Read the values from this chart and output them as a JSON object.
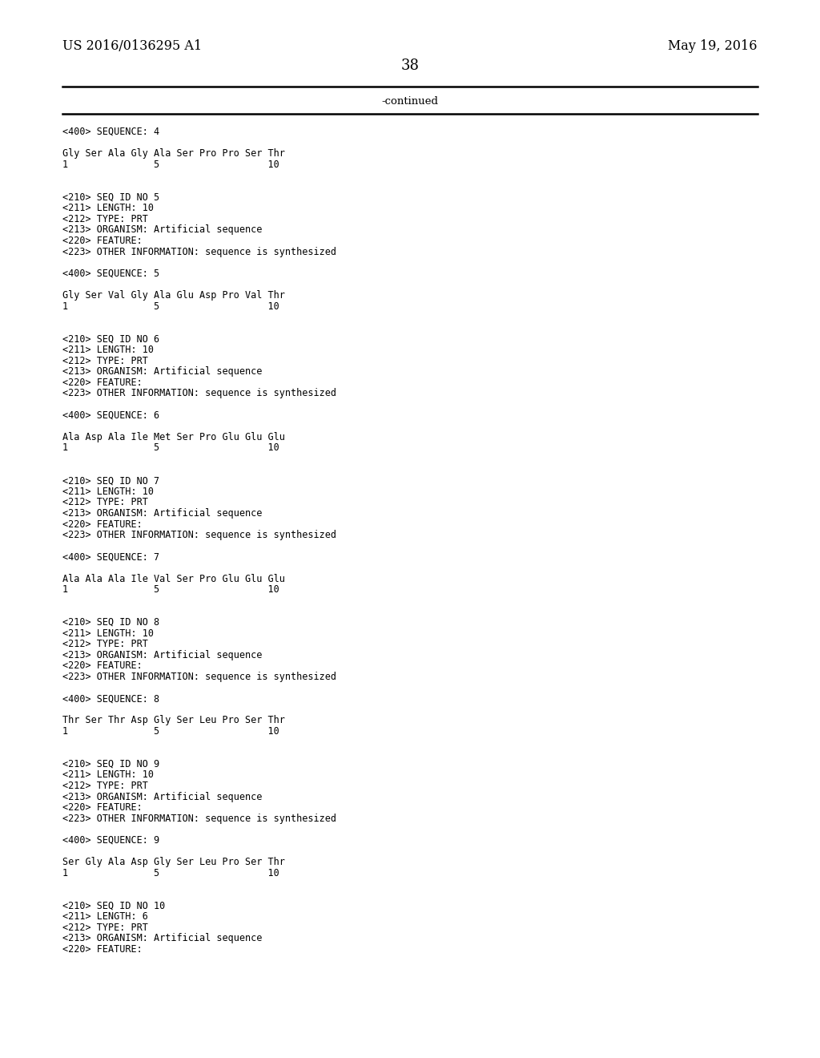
{
  "header_left": "US 2016/0136295 A1",
  "header_right": "May 19, 2016",
  "page_number": "38",
  "continued_label": "-continued",
  "background_color": "#ffffff",
  "text_color": "#000000",
  "header_fontsize": 11.5,
  "page_num_fontsize": 13.0,
  "mono_fontsize": 8.5,
  "continued_fontsize": 9.5,
  "lines": [
    "<400> SEQUENCE: 4",
    "",
    "Gly Ser Ala Gly Ala Ser Pro Pro Ser Thr",
    "1               5                   10",
    "",
    "",
    "<210> SEQ ID NO 5",
    "<211> LENGTH: 10",
    "<212> TYPE: PRT",
    "<213> ORGANISM: Artificial sequence",
    "<220> FEATURE:",
    "<223> OTHER INFORMATION: sequence is synthesized",
    "",
    "<400> SEQUENCE: 5",
    "",
    "Gly Ser Val Gly Ala Glu Asp Pro Val Thr",
    "1               5                   10",
    "",
    "",
    "<210> SEQ ID NO 6",
    "<211> LENGTH: 10",
    "<212> TYPE: PRT",
    "<213> ORGANISM: Artificial sequence",
    "<220> FEATURE:",
    "<223> OTHER INFORMATION: sequence is synthesized",
    "",
    "<400> SEQUENCE: 6",
    "",
    "Ala Asp Ala Ile Met Ser Pro Glu Glu Glu",
    "1               5                   10",
    "",
    "",
    "<210> SEQ ID NO 7",
    "<211> LENGTH: 10",
    "<212> TYPE: PRT",
    "<213> ORGANISM: Artificial sequence",
    "<220> FEATURE:",
    "<223> OTHER INFORMATION: sequence is synthesized",
    "",
    "<400> SEQUENCE: 7",
    "",
    "Ala Ala Ala Ile Val Ser Pro Glu Glu Glu",
    "1               5                   10",
    "",
    "",
    "<210> SEQ ID NO 8",
    "<211> LENGTH: 10",
    "<212> TYPE: PRT",
    "<213> ORGANISM: Artificial sequence",
    "<220> FEATURE:",
    "<223> OTHER INFORMATION: sequence is synthesized",
    "",
    "<400> SEQUENCE: 8",
    "",
    "Thr Ser Thr Asp Gly Ser Leu Pro Ser Thr",
    "1               5                   10",
    "",
    "",
    "<210> SEQ ID NO 9",
    "<211> LENGTH: 10",
    "<212> TYPE: PRT",
    "<213> ORGANISM: Artificial sequence",
    "<220> FEATURE:",
    "<223> OTHER INFORMATION: sequence is synthesized",
    "",
    "<400> SEQUENCE: 9",
    "",
    "Ser Gly Ala Asp Gly Ser Leu Pro Ser Thr",
    "1               5                   10",
    "",
    "",
    "<210> SEQ ID NO 10",
    "<211> LENGTH: 6",
    "<212> TYPE: PRT",
    "<213> ORGANISM: Artificial sequence",
    "<220> FEATURE:"
  ]
}
